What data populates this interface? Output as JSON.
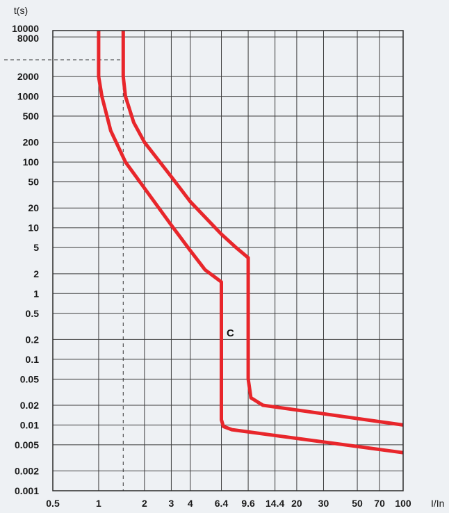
{
  "chart_data": {
    "type": "line",
    "title": "",
    "ylabel": "t(s)",
    "xlabel": "I/In",
    "x_scale": "log",
    "y_scale": "log",
    "xlim": [
      0.5,
      100
    ],
    "ylim": [
      0.001,
      10000
    ],
    "x_ticks": [
      0.5,
      1,
      2,
      3,
      4,
      6.4,
      9.6,
      14.4,
      20,
      30,
      50,
      70,
      100
    ],
    "x_tick_labels": [
      "0.5",
      "1",
      "2",
      "3",
      "4",
      "6.4",
      "9.6",
      "14.4",
      "20",
      "30",
      "50",
      "70",
      "100"
    ],
    "y_ticks": [
      10000,
      8000,
      2000,
      1000,
      500,
      200,
      100,
      50,
      20,
      10,
      5,
      2,
      1,
      0.5,
      0.2,
      0.1,
      0.05,
      0.02,
      0.01,
      0.005,
      0.002,
      0.001
    ],
    "y_tick_labels": [
      "10000",
      "8000",
      "2000",
      "1000",
      "500",
      "200",
      "100",
      "50",
      "20",
      "10",
      "5",
      "2",
      "1",
      "0.5",
      "0.2",
      "0.1",
      "0.05",
      "0.02",
      "0.01",
      "0.005",
      "0.002",
      "0.001"
    ],
    "grid": true,
    "curve_color": "#e8262b",
    "annotation": "C",
    "reference_lines": [
      {
        "orientation": "vertical",
        "x": 1.45,
        "style": "dashed"
      },
      {
        "orientation": "horizontal",
        "y": 3600,
        "style": "dashed"
      }
    ],
    "series": [
      {
        "points": [
          [
            1,
            10000
          ],
          [
            1,
            2000
          ],
          [
            1.05,
            1000
          ],
          [
            1.2,
            300
          ],
          [
            1.5,
            100
          ],
          [
            2,
            40
          ],
          [
            3,
            11
          ],
          [
            4,
            4.5
          ],
          [
            5,
            2.3
          ],
          [
            6.4,
            1.5
          ],
          [
            6.4,
            0.012
          ],
          [
            6.6,
            0.0095
          ],
          [
            7.5,
            0.0085
          ],
          [
            100,
            0.0038
          ]
        ]
      },
      {
        "points": [
          [
            1.45,
            10000
          ],
          [
            1.45,
            2000
          ],
          [
            1.5,
            1000
          ],
          [
            1.7,
            400
          ],
          [
            2,
            200
          ],
          [
            3,
            60
          ],
          [
            4,
            25
          ],
          [
            6.4,
            8
          ],
          [
            8,
            5
          ],
          [
            9.6,
            3.5
          ],
          [
            9.6,
            0.05
          ],
          [
            10,
            0.026
          ],
          [
            12,
            0.02
          ],
          [
            100,
            0.01
          ]
        ]
      }
    ]
  }
}
